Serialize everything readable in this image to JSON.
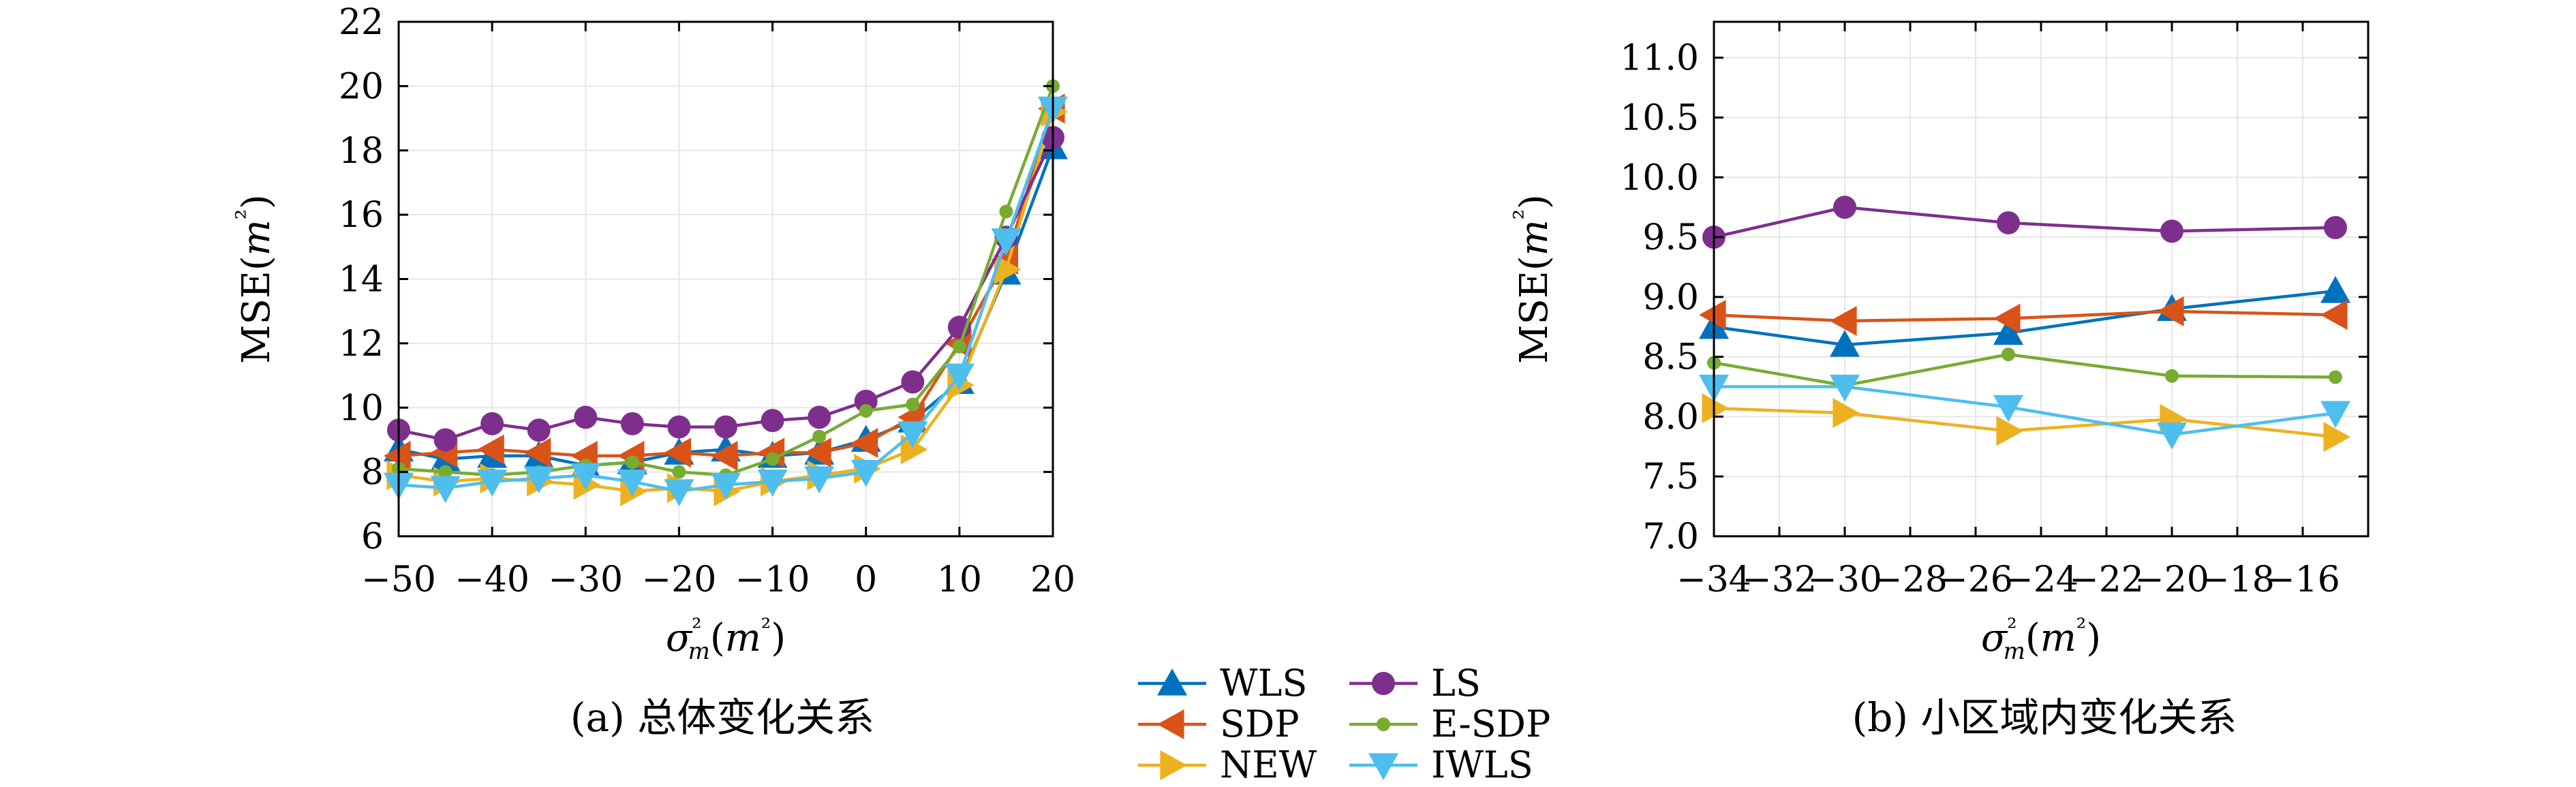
{
  "chart_data": [
    {
      "type": "line",
      "caption": "(a) 总体变化关系",
      "ylabel": "MSE(m²)",
      "xlabel": "σ²m(m²)",
      "xlim": [
        -50,
        20
      ],
      "ylim": [
        6,
        22
      ],
      "xticks": [
        -50,
        -40,
        -30,
        -20,
        -10,
        0,
        10,
        20
      ],
      "yticks": [
        6,
        8,
        10,
        12,
        14,
        16,
        18,
        20,
        22
      ],
      "grid": true,
      "x": [
        -50,
        -45,
        -40,
        -35,
        -30,
        -25,
        -20,
        -15,
        -10,
        -5,
        0,
        5,
        10,
        15,
        20
      ],
      "series": [
        {
          "name": "WLS",
          "color": "#0072BD",
          "marker": "triangle-up",
          "values": [
            8.7,
            8.4,
            8.5,
            8.5,
            8.2,
            8.3,
            8.6,
            8.7,
            8.5,
            8.6,
            9.0,
            9.6,
            10.8,
            14.2,
            18.1
          ]
        },
        {
          "name": "SDP",
          "color": "#D95319",
          "marker": "triangle-left",
          "values": [
            8.5,
            8.6,
            8.7,
            8.6,
            8.5,
            8.5,
            8.6,
            8.5,
            8.6,
            8.6,
            8.9,
            9.7,
            12.0,
            14.6,
            19.3
          ]
        },
        {
          "name": "NEW",
          "color": "#EDB120",
          "marker": "triangle-right",
          "values": [
            7.9,
            7.7,
            7.8,
            7.7,
            7.6,
            7.4,
            7.5,
            7.4,
            7.7,
            7.9,
            8.1,
            8.7,
            10.7,
            14.3,
            19.2
          ]
        },
        {
          "name": "LS",
          "color": "#7E2F8E",
          "marker": "circle",
          "values": [
            9.3,
            9.0,
            9.5,
            9.3,
            9.7,
            9.5,
            9.4,
            9.4,
            9.6,
            9.7,
            10.2,
            10.8,
            12.5,
            15.3,
            18.4
          ]
        },
        {
          "name": "E-SDP",
          "color": "#77AC30",
          "marker": "dot",
          "values": [
            8.1,
            8.0,
            7.9,
            8.0,
            8.2,
            8.3,
            8.0,
            7.9,
            8.4,
            9.1,
            9.9,
            10.1,
            11.9,
            16.1,
            20.0
          ]
        },
        {
          "name": "IWLS",
          "color": "#4DBEEE",
          "marker": "triangle-down",
          "values": [
            7.6,
            7.5,
            7.7,
            7.8,
            7.9,
            7.7,
            7.4,
            7.6,
            7.7,
            7.8,
            8.0,
            9.2,
            11.0,
            15.2,
            19.3
          ]
        }
      ]
    },
    {
      "type": "line",
      "caption": "(b) 小区域内变化关系",
      "ylabel": "MSE(m²)",
      "xlabel": "σ²m(m²)",
      "xlim": [
        -34,
        -14
      ],
      "ylim": [
        7,
        11.3
      ],
      "xticks": [
        -34,
        -32,
        -30,
        -28,
        -26,
        -24,
        -22,
        -20,
        -18,
        -16
      ],
      "yticks": [
        "7.0",
        "7.5",
        "8.0",
        "8.5",
        "9.0",
        "9.5",
        "10.0",
        "10.5",
        "11.0"
      ],
      "grid": true,
      "x": [
        -34,
        -30,
        -25,
        -20,
        -15
      ],
      "series": [
        {
          "name": "WLS",
          "color": "#0072BD",
          "marker": "triangle-up",
          "values": [
            8.75,
            8.6,
            8.7,
            8.9,
            9.05
          ]
        },
        {
          "name": "SDP",
          "color": "#D95319",
          "marker": "triangle-left",
          "values": [
            8.85,
            8.8,
            8.82,
            8.88,
            8.85
          ]
        },
        {
          "name": "NEW",
          "color": "#EDB120",
          "marker": "triangle-right",
          "values": [
            8.07,
            8.03,
            7.88,
            7.98,
            7.83
          ]
        },
        {
          "name": "LS",
          "color": "#7E2F8E",
          "marker": "circle",
          "values": [
            9.5,
            9.75,
            9.62,
            9.55,
            9.58
          ]
        },
        {
          "name": "E-SDP",
          "color": "#77AC30",
          "marker": "dot",
          "values": [
            8.45,
            8.26,
            8.52,
            8.34,
            8.33
          ]
        },
        {
          "name": "IWLS",
          "color": "#4DBEEE",
          "marker": "triangle-down",
          "values": [
            8.25,
            8.25,
            8.08,
            7.85,
            8.03
          ]
        }
      ]
    }
  ],
  "legend": {
    "placement": "bottom-center",
    "items": [
      {
        "name": "WLS",
        "color": "#0072BD",
        "marker": "triangle-up"
      },
      {
        "name": "LS",
        "color": "#7E2F8E",
        "marker": "circle"
      },
      {
        "name": "SDP",
        "color": "#D95319",
        "marker": "triangle-left"
      },
      {
        "name": "E-SDP",
        "color": "#77AC30",
        "marker": "dot"
      },
      {
        "name": "NEW",
        "color": "#EDB120",
        "marker": "triangle-right"
      },
      {
        "name": "IWLS",
        "color": "#4DBEEE",
        "marker": "triangle-down"
      }
    ]
  }
}
